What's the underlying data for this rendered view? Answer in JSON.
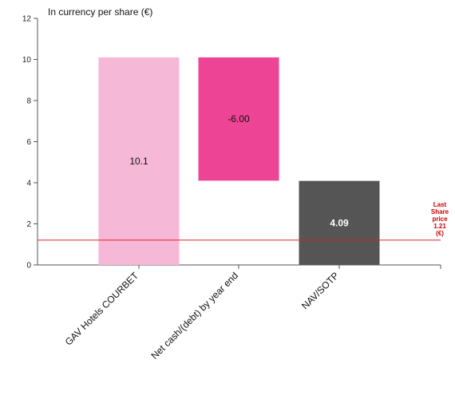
{
  "chart_data": {
    "type": "bar",
    "title": "In currency per share (€)",
    "categories": [
      "GAV Hotels COURBET",
      "Net cash/(debt) by year end",
      "NAV/SOTP"
    ],
    "bars": [
      {
        "category": "GAV Hotels COURBET",
        "start": 0,
        "end": 10.1,
        "label": "10.1",
        "color": "#f6b8d7",
        "label_color": "#111111"
      },
      {
        "category": "Net cash/(debt) by year end",
        "start": 10.1,
        "end": 4.1,
        "label": "-6.00",
        "color": "#ee4495",
        "label_color": "#111111"
      },
      {
        "category": "NAV/SOTP",
        "start": 0,
        "end": 4.09,
        "label": "4.09",
        "color": "#555555",
        "label_color": "#ffffff"
      }
    ],
    "ylim": [
      0,
      12
    ],
    "yticks": [
      0,
      2,
      4,
      6,
      8,
      10,
      12
    ],
    "reference_line": {
      "value": 1.21,
      "color": "#e02020",
      "label_lines": [
        "Last",
        "Share",
        "price",
        "1.21",
        "(€)"
      ]
    }
  }
}
